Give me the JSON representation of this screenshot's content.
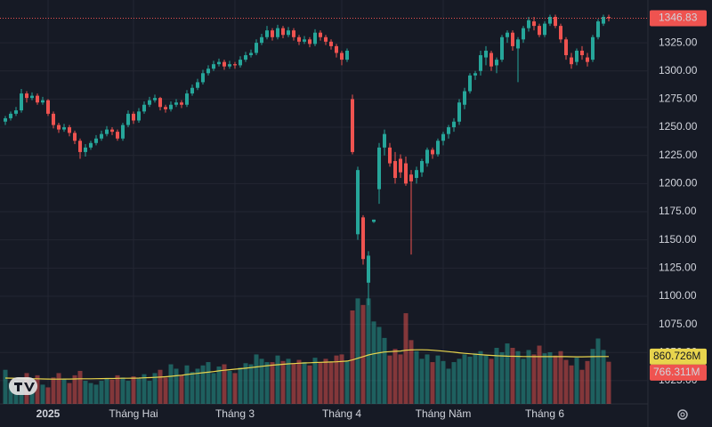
{
  "chart_data": {
    "type": "candlestick",
    "ylim": [
      1004.4,
      1363
    ],
    "yticks": [
      {
        "value": 1025,
        "label": "1025.00"
      },
      {
        "value": 1050,
        "label": "1050.00"
      },
      {
        "value": 1075,
        "label": "1075.00"
      },
      {
        "value": 1100,
        "label": "1100.00"
      },
      {
        "value": 1125,
        "label": "1125.00"
      },
      {
        "value": 1150,
        "label": "1150.00"
      },
      {
        "value": 1175,
        "label": "1175.00"
      },
      {
        "value": 1200,
        "label": "1200.00"
      },
      {
        "value": 1225,
        "label": "1225.00"
      },
      {
        "value": 1250,
        "label": "1250.00"
      },
      {
        "value": 1275,
        "label": "1275.00"
      },
      {
        "value": 1300,
        "label": "1300.00"
      },
      {
        "value": 1325,
        "label": "1325.00"
      }
    ],
    "x_labels": [
      {
        "index": 8,
        "label": "2025"
      },
      {
        "index": 24,
        "label": "Tháng Hai"
      },
      {
        "index": 43,
        "label": "Tháng 3"
      },
      {
        "index": 63,
        "label": "Tháng 4"
      },
      {
        "index": 82,
        "label": "Tháng Năm"
      },
      {
        "index": 101,
        "label": "Tháng 6"
      }
    ],
    "up_color": "#26a69a",
    "down_color": "#ef5350",
    "grid": true,
    "candles": [
      [
        1255,
        1260,
        1252,
        1258
      ],
      [
        1258,
        1264,
        1256,
        1262
      ],
      [
        1262,
        1268,
        1260,
        1265
      ],
      [
        1265,
        1284,
        1263,
        1280
      ],
      [
        1280,
        1282,
        1272,
        1276
      ],
      [
        1276,
        1281,
        1274,
        1278
      ],
      [
        1278,
        1280,
        1270,
        1272
      ],
      [
        1272,
        1277,
        1270,
        1274
      ],
      [
        1274,
        1275,
        1260,
        1262
      ],
      [
        1262,
        1264,
        1249,
        1252
      ],
      [
        1252,
        1254,
        1245,
        1248
      ],
      [
        1248,
        1253,
        1246,
        1250
      ],
      [
        1250,
        1252,
        1242,
        1245
      ],
      [
        1245,
        1247,
        1235,
        1238
      ],
      [
        1238,
        1240,
        1222,
        1228
      ],
      [
        1228,
        1235,
        1224,
        1232
      ],
      [
        1232,
        1238,
        1230,
        1236
      ],
      [
        1236,
        1243,
        1234,
        1240
      ],
      [
        1240,
        1247,
        1238,
        1244
      ],
      [
        1244,
        1251,
        1242,
        1248
      ],
      [
        1248,
        1250,
        1243,
        1246
      ],
      [
        1246,
        1248,
        1238,
        1240
      ],
      [
        1240,
        1254,
        1238,
        1252
      ],
      [
        1252,
        1265,
        1250,
        1262
      ],
      [
        1262,
        1264,
        1253,
        1256
      ],
      [
        1256,
        1267,
        1254,
        1264
      ],
      [
        1264,
        1273,
        1262,
        1270
      ],
      [
        1270,
        1277,
        1268,
        1274
      ],
      [
        1274,
        1279,
        1272,
        1276
      ],
      [
        1276,
        1277,
        1265,
        1268
      ],
      [
        1268,
        1270,
        1263,
        1266
      ],
      [
        1266,
        1273,
        1264,
        1270
      ],
      [
        1270,
        1275,
        1268,
        1272
      ],
      [
        1272,
        1274,
        1267,
        1270
      ],
      [
        1270,
        1283,
        1268,
        1280
      ],
      [
        1280,
        1288,
        1278,
        1285
      ],
      [
        1285,
        1293,
        1283,
        1290
      ],
      [
        1290,
        1301,
        1288,
        1298
      ],
      [
        1298,
        1305,
        1296,
        1302
      ],
      [
        1302,
        1309,
        1300,
        1306
      ],
      [
        1306,
        1311,
        1304,
        1308
      ],
      [
        1308,
        1310,
        1301,
        1304
      ],
      [
        1304,
        1309,
        1302,
        1306
      ],
      [
        1306,
        1308,
        1302,
        1305
      ],
      [
        1305,
        1313,
        1303,
        1310
      ],
      [
        1310,
        1317,
        1308,
        1314
      ],
      [
        1314,
        1319,
        1312,
        1316
      ],
      [
        1316,
        1328,
        1314,
        1325
      ],
      [
        1325,
        1333,
        1323,
        1330
      ],
      [
        1330,
        1340,
        1328,
        1336
      ],
      [
        1336,
        1338,
        1327,
        1330
      ],
      [
        1330,
        1341,
        1328,
        1338
      ],
      [
        1338,
        1340,
        1329,
        1332
      ],
      [
        1332,
        1339,
        1330,
        1336
      ],
      [
        1336,
        1338,
        1327,
        1330
      ],
      [
        1330,
        1332,
        1323,
        1326
      ],
      [
        1326,
        1331,
        1324,
        1328
      ],
      [
        1328,
        1330,
        1321,
        1324
      ],
      [
        1324,
        1337,
        1322,
        1334
      ],
      [
        1334,
        1336,
        1327,
        1330
      ],
      [
        1330,
        1332,
        1323,
        1326
      ],
      [
        1326,
        1328,
        1319,
        1322
      ],
      [
        1322,
        1324,
        1312,
        1316
      ],
      [
        1316,
        1318,
        1305,
        1310
      ],
      [
        1310,
        1320,
        1308,
        1318
      ],
      [
        1275,
        1279,
        1226,
        1228
      ],
      [
        1155,
        1215,
        1150,
        1212
      ],
      [
        1170,
        1172,
        1128,
        1133
      ],
      [
        1112,
        1140,
        1092,
        1136
      ],
      [
        1166,
        1168,
        1165,
        1168
      ],
      [
        1195,
        1236,
        1182,
        1232
      ],
      [
        1232,
        1248,
        1225,
        1244
      ],
      [
        1232,
        1236,
        1215,
        1218
      ],
      [
        1220,
        1228,
        1200,
        1205
      ],
      [
        1222,
        1226,
        1205,
        1210
      ],
      [
        1218,
        1224,
        1198,
        1200
      ],
      [
        1208,
        1212,
        1137,
        1202
      ],
      [
        1205,
        1215,
        1200,
        1212
      ],
      [
        1210,
        1222,
        1206,
        1220
      ],
      [
        1218,
        1232,
        1215,
        1230
      ],
      [
        1230,
        1232,
        1222,
        1226
      ],
      [
        1226,
        1240,
        1224,
        1238
      ],
      [
        1238,
        1246,
        1234,
        1244
      ],
      [
        1244,
        1252,
        1240,
        1250
      ],
      [
        1250,
        1258,
        1246,
        1255
      ],
      [
        1255,
        1275,
        1252,
        1272
      ],
      [
        1270,
        1285,
        1266,
        1282
      ],
      [
        1282,
        1298,
        1280,
        1296
      ],
      [
        1296,
        1300,
        1292,
        1298
      ],
      [
        1300,
        1318,
        1296,
        1314
      ],
      [
        1312,
        1322,
        1305,
        1318
      ],
      [
        1316,
        1318,
        1300,
        1304
      ],
      [
        1305,
        1312,
        1298,
        1310
      ],
      [
        1310,
        1332,
        1308,
        1330
      ],
      [
        1330,
        1336,
        1325,
        1334
      ],
      [
        1334,
        1336,
        1318,
        1322
      ],
      [
        1320,
        1330,
        1290,
        1328
      ],
      [
        1328,
        1340,
        1325,
        1338
      ],
      [
        1338,
        1348,
        1335,
        1345
      ],
      [
        1344,
        1348,
        1336,
        1340
      ],
      [
        1340,
        1342,
        1330,
        1332
      ],
      [
        1332,
        1344,
        1330,
        1342
      ],
      [
        1342,
        1350,
        1340,
        1348
      ],
      [
        1348,
        1350,
        1338,
        1340
      ],
      [
        1340,
        1342,
        1325,
        1328
      ],
      [
        1328,
        1330,
        1310,
        1314
      ],
      [
        1312,
        1316,
        1302,
        1306
      ],
      [
        1308,
        1320,
        1305,
        1318
      ],
      [
        1318,
        1322,
        1310,
        1314
      ],
      [
        1312,
        1316,
        1304,
        1308
      ],
      [
        1310,
        1332,
        1308,
        1330
      ],
      [
        1330,
        1346,
        1328,
        1344
      ],
      [
        1342,
        1350,
        1340,
        1348
      ],
      [
        1348,
        1350,
        1344,
        1346.83
      ]
    ],
    "volume_lim": [
      0,
      7350
    ],
    "volumes": [
      620,
      380,
      420,
      300,
      560,
      400,
      520,
      350,
      300,
      480,
      560,
      450,
      380,
      520,
      600,
      420,
      380,
      350,
      420,
      460,
      440,
      520,
      480,
      420,
      500,
      460,
      540,
      420,
      560,
      620,
      480,
      720,
      640,
      520,
      700,
      580,
      640,
      700,
      760,
      560,
      680,
      720,
      600,
      560,
      660,
      740,
      720,
      900,
      820,
      760,
      760,
      880,
      780,
      820,
      740,
      800,
      760,
      700,
      840,
      760,
      820,
      760,
      880,
      900,
      780,
      1700,
      1920,
      1800,
      1920,
      1500,
      1400,
      1200,
      880,
      1000,
      900,
      1650,
      1160,
      960,
      820,
      900,
      760,
      880,
      780,
      640,
      760,
      820,
      900,
      860,
      920,
      960,
      880,
      820,
      1020,
      940,
      1100,
      1020,
      960,
      820,
      980,
      900,
      1060,
      920,
      940,
      880,
      960,
      800,
      700,
      840,
      620,
      780,
      1000,
      1190,
      980,
      766.311
    ],
    "last_volume_label": "766.311M",
    "volume_ma": {
      "color": "#e8d44d",
      "last_value_label": "860.726M",
      "values": [
        470,
        468,
        466,
        462,
        460,
        458,
        456,
        454,
        452,
        450,
        450,
        452,
        452,
        454,
        456,
        456,
        456,
        458,
        460,
        462,
        462,
        464,
        466,
        466,
        468,
        470,
        474,
        478,
        482,
        488,
        494,
        502,
        512,
        522,
        534,
        546,
        556,
        566,
        576,
        588,
        600,
        612,
        622,
        632,
        640,
        650,
        660,
        672,
        684,
        694,
        704,
        712,
        720,
        728,
        734,
        740,
        744,
        748,
        752,
        756,
        760,
        762,
        766,
        772,
        778,
        800,
        830,
        860,
        890,
        912,
        930,
        944,
        950,
        956,
        962,
        976,
        982,
        984,
        984,
        982,
        976,
        968,
        960,
        950,
        940,
        930,
        920,
        912,
        904,
        896,
        888,
        882,
        876,
        872,
        868,
        866,
        864,
        862,
        862,
        860,
        860,
        860,
        860,
        860,
        860,
        860,
        858,
        856,
        856,
        858,
        860,
        862,
        862,
        860.726
      ]
    }
  }
}
